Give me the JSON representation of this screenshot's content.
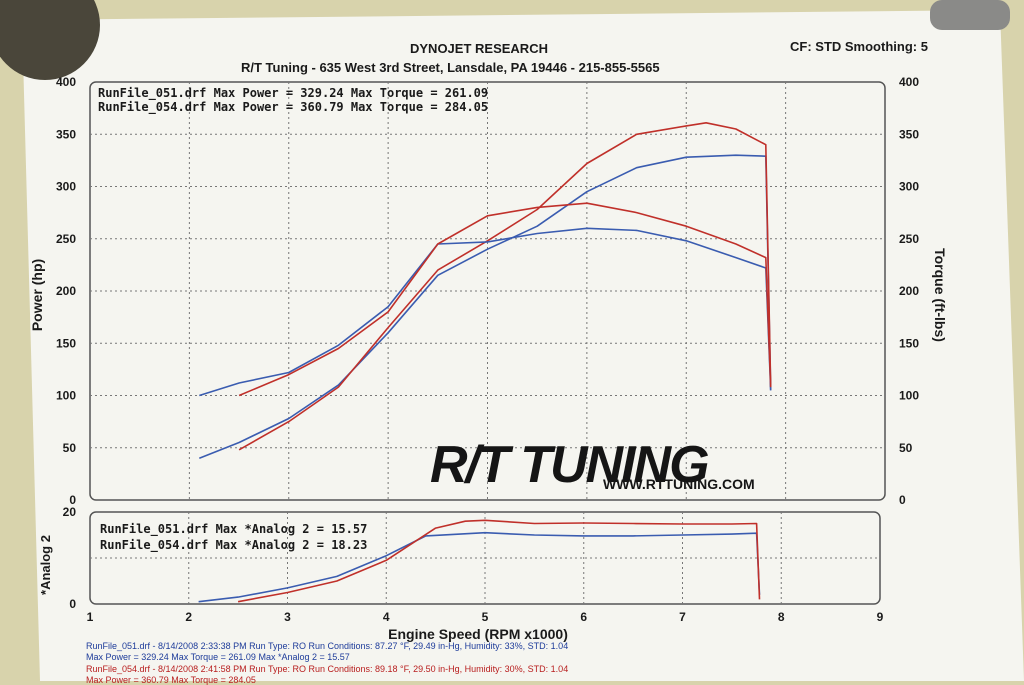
{
  "header": {
    "line1": "DYNOJET RESEARCH",
    "line2": "R/T Tuning - 635 West 3rd Street, Lansdale, PA 19446 - 215-855-5565",
    "settings": "CF: STD  Smoothing: 5"
  },
  "main_legend": {
    "run1": "RunFile_051.drf Max Power = 329.24   Max Torque = 261.09",
    "run2": "RunFile_054.drf Max Power = 360.79   Max Torque = 284.05"
  },
  "analog_legend": {
    "run1": "RunFile_051.drf Max *Analog 2 = 15.57",
    "run2": "RunFile_054.drf Max *Analog 2 = 18.23"
  },
  "logo": {
    "brand": "R/T TUNING",
    "url": "WWW.RTTUNING.COM"
  },
  "footer": {
    "run1_line1": "RunFile_051.drf - 8/14/2008 2:33:38 PM  Run Type: RO  Run Conditions: 87.27 °F, 29.49 in-Hg,  Humidity: 33%, STD: 1.04",
    "run1_line2": "Max Power = 329.24  Max Torque = 261.09  Max *Analog 2 = 15.57",
    "run2_line1": "RunFile_054.drf - 8/14/2008 2:41:58 PM  Run Type: RO  Run Conditions: 89.18 °F, 29.50 in-Hg,  Humidity: 30%, STD: 1.04",
    "run2_line2": "Max Power = 360.79  Max Torque = 284.05"
  },
  "colors": {
    "run_051": "#3a5cb0",
    "run_054": "#c0302a",
    "paper": "#f5f5f0",
    "wall": "#d8d3ac"
  },
  "chart_data": [
    {
      "type": "line",
      "title": "DYNOJET RESEARCH",
      "xlabel": "Engine Speed (RPM x1000)",
      "ylabel": "Power (hp)",
      "y2label": "Torque (ft-lbs)",
      "xlim": [
        1,
        9
      ],
      "ylim": [
        0,
        400
      ],
      "y2lim": [
        0,
        400
      ],
      "yticks": [
        0,
        50,
        100,
        150,
        200,
        250,
        300,
        350,
        400
      ],
      "y2ticks": [
        0,
        50,
        100,
        150,
        200,
        250,
        300,
        350,
        400
      ],
      "grid": true,
      "series": [
        {
          "name": "RunFile_051.drf",
          "measure": "power",
          "color": "#3a5cb0",
          "x": [
            2.1,
            2.5,
            3.0,
            3.5,
            4.0,
            4.5,
            5.0,
            5.5,
            6.0,
            6.5,
            7.0,
            7.5,
            7.8,
            7.85
          ],
          "y": [
            40,
            55,
            78,
            110,
            160,
            215,
            240,
            262,
            295,
            318,
            328,
            330,
            329,
            105
          ]
        },
        {
          "name": "RunFile_054.drf",
          "measure": "power",
          "color": "#c0302a",
          "x": [
            2.5,
            3.0,
            3.5,
            4.0,
            4.5,
            5.0,
            5.5,
            6.0,
            6.5,
            7.0,
            7.2,
            7.5,
            7.8,
            7.85
          ],
          "y": [
            48,
            75,
            108,
            165,
            220,
            248,
            278,
            322,
            350,
            358,
            361,
            355,
            340,
            108
          ]
        },
        {
          "name": "RunFile_051.drf",
          "measure": "torque",
          "color": "#3a5cb0",
          "x": [
            2.1,
            2.5,
            3.0,
            3.5,
            4.0,
            4.5,
            5.0,
            5.5,
            6.0,
            6.5,
            7.0,
            7.5,
            7.8,
            7.85
          ],
          "y": [
            100,
            112,
            122,
            148,
            185,
            245,
            247,
            255,
            260,
            258,
            248,
            232,
            222,
            105
          ]
        },
        {
          "name": "RunFile_054.drf",
          "measure": "torque",
          "color": "#c0302a",
          "x": [
            2.5,
            3.0,
            3.5,
            4.0,
            4.5,
            5.0,
            5.5,
            6.0,
            6.5,
            7.0,
            7.5,
            7.8,
            7.85
          ],
          "y": [
            100,
            120,
            145,
            180,
            245,
            272,
            280,
            284,
            275,
            262,
            245,
            232,
            108
          ]
        }
      ]
    },
    {
      "type": "line",
      "xlabel": "Engine Speed (RPM x1000)",
      "ylabel": "*Analog 2",
      "xlim": [
        1,
        9
      ],
      "ylim": [
        0,
        20
      ],
      "yticks": [
        0,
        20
      ],
      "xticks": [
        1,
        2,
        3,
        4,
        5,
        6,
        7,
        8,
        9
      ],
      "grid": true,
      "series": [
        {
          "name": "RunFile_051.drf",
          "color": "#3a5cb0",
          "x": [
            2.1,
            2.5,
            3.0,
            3.5,
            4.0,
            4.4,
            5.0,
            5.5,
            6.0,
            6.5,
            7.0,
            7.5,
            7.75,
            7.78
          ],
          "y": [
            0.5,
            1.5,
            3.5,
            6.0,
            10.5,
            14.8,
            15.5,
            15.0,
            14.8,
            14.8,
            15.0,
            15.2,
            15.4,
            2
          ]
        },
        {
          "name": "RunFile_054.drf",
          "color": "#c0302a",
          "x": [
            2.5,
            3.0,
            3.5,
            4.0,
            4.5,
            4.8,
            5.0,
            5.5,
            6.0,
            6.5,
            7.0,
            7.5,
            7.75,
            7.78
          ],
          "y": [
            0.5,
            2.5,
            5.0,
            9.5,
            16.5,
            18.0,
            18.2,
            17.5,
            17.6,
            17.5,
            17.4,
            17.4,
            17.5,
            1
          ]
        }
      ]
    }
  ]
}
